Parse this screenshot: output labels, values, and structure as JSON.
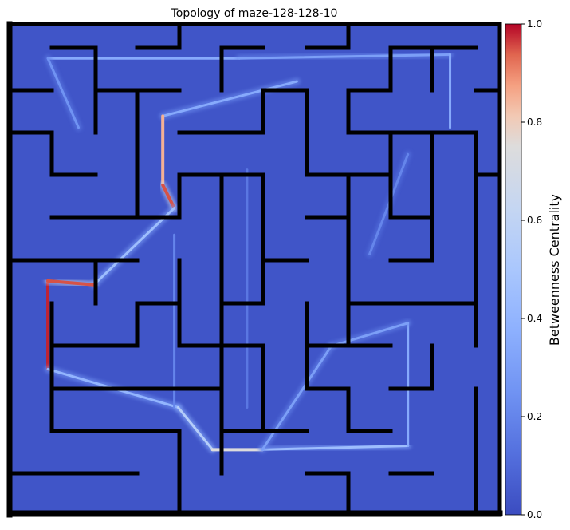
{
  "chart_data": {
    "type": "heatmap",
    "title": "Topology of maze-128-128-10",
    "colormap": "coolwarm",
    "grid_size": [
      128,
      128
    ],
    "background_value": 0.05,
    "colorbar": {
      "label": "Betweenness Centrality",
      "range": [
        0,
        1
      ],
      "ticks": [
        "0.0",
        "0.2",
        "0.4",
        "0.6",
        "0.8",
        "1.0"
      ],
      "tick_values": [
        0.0,
        0.2,
        0.4,
        0.6,
        0.8,
        1.0
      ],
      "position": "right"
    },
    "walls_note": "maze walls drawn in black over 12x12 cell lattice",
    "high_centrality_paths": [
      {
        "from": [
          10,
          9
        ],
        "to": [
          60,
          9
        ],
        "value": 0.35
      },
      {
        "from": [
          60,
          9
        ],
        "to": [
          115,
          8
        ],
        "value": 0.3
      },
      {
        "from": [
          115,
          8
        ],
        "to": [
          115,
          27
        ],
        "value": 0.35
      },
      {
        "from": [
          10,
          9
        ],
        "to": [
          18,
          27
        ],
        "value": 0.25
      },
      {
        "from": [
          40,
          24
        ],
        "to": [
          75,
          15
        ],
        "value": 0.35
      },
      {
        "from": [
          40,
          24
        ],
        "to": [
          40,
          42
        ],
        "value": 0.85
      },
      {
        "from": [
          40,
          42
        ],
        "to": [
          43,
          48
        ],
        "value": 0.95
      },
      {
        "from": [
          43,
          48
        ],
        "to": [
          22,
          68
        ],
        "value": 0.45
      },
      {
        "from": [
          10,
          67
        ],
        "to": [
          10,
          90
        ],
        "value": 0.98
      },
      {
        "from": [
          10,
          67
        ],
        "to": [
          22,
          68
        ],
        "value": 0.95
      },
      {
        "from": [
          10,
          90
        ],
        "to": [
          44,
          100
        ],
        "value": 0.4
      },
      {
        "from": [
          44,
          100
        ],
        "to": [
          53,
          111
        ],
        "value": 0.55
      },
      {
        "from": [
          53,
          111
        ],
        "to": [
          66,
          111
        ],
        "value": 0.75
      },
      {
        "from": [
          66,
          111
        ],
        "to": [
          104,
          110
        ],
        "value": 0.45
      },
      {
        "from": [
          104,
          110
        ],
        "to": [
          104,
          78
        ],
        "value": 0.35
      },
      {
        "from": [
          43,
          55
        ],
        "to": [
          43,
          100
        ],
        "value": 0.2
      },
      {
        "from": [
          62,
          38
        ],
        "to": [
          62,
          100
        ],
        "value": 0.15
      },
      {
        "from": [
          66,
          111
        ],
        "to": [
          84,
          84
        ],
        "value": 0.3
      },
      {
        "from": [
          84,
          84
        ],
        "to": [
          104,
          78
        ],
        "value": 0.3
      },
      {
        "from": [
          94,
          60
        ],
        "to": [
          104,
          34
        ],
        "value": 0.2
      }
    ]
  }
}
